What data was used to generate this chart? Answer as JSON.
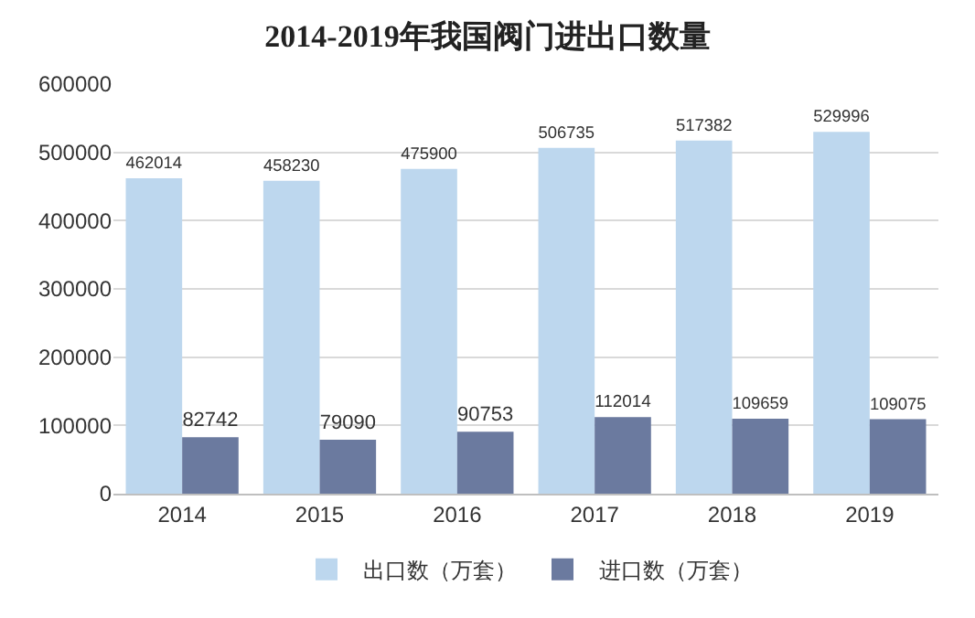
{
  "chart_data": {
    "type": "bar",
    "title": "2014-2019年我国阀门进出口数量",
    "categories": [
      "2014",
      "2015",
      "2016",
      "2017",
      "2018",
      "2019"
    ],
    "series": [
      {
        "name": "出口数（万套）",
        "color": "#bdd7ee",
        "values": [
          462014,
          458230,
          475900,
          506735,
          517382,
          529996
        ]
      },
      {
        "name": "进口数（万套）",
        "color": "#6b7a9f",
        "values": [
          82742,
          79090,
          90753,
          112014,
          109659,
          109075
        ]
      }
    ],
    "ylim": [
      0,
      600000
    ],
    "yticks": [
      0,
      100000,
      200000,
      300000,
      400000,
      500000,
      600000
    ],
    "grid": "y",
    "legend": "bottom",
    "data_labels": true
  }
}
